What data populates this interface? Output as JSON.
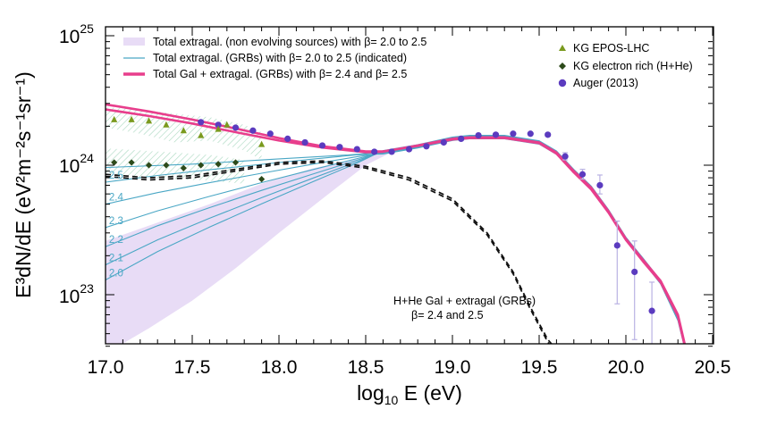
{
  "chart_data": {
    "type": "line",
    "xlabel_main": "log",
    "xlabel_sub": "10",
    "xlabel_rest": " E (eV)",
    "ylabel": "E³dN/dE (eV²m⁻²s⁻¹sr⁻¹)",
    "xlim": [
      17.0,
      20.5
    ],
    "ylim": [
      3.5e+22,
      1e+25
    ],
    "yscale": "log",
    "x_ticks": [
      "17.0",
      "17.5",
      "18.0",
      "18.5",
      "19.0",
      "19.5",
      "20.0",
      "20.5"
    ],
    "y_ticks": [
      {
        "base": "10",
        "exp": "23",
        "value": 1e+23
      },
      {
        "base": "10",
        "exp": "24",
        "value": 1e+24
      },
      {
        "base": "10",
        "exp": "25",
        "value": 1e+25
      }
    ],
    "colors": {
      "band": "#e8dcf6",
      "grb_lines": "#4aa7c5",
      "total": "#e83e8c",
      "epos": "#7a9a1e",
      "electron": "#2c4a1a",
      "auger": "#5b3bbf",
      "hatch": "#9ed3b8",
      "auger_err": "#b9b2e3"
    },
    "legend_left": [
      {
        "style": "band",
        "label": "Total extragal. (non evolving sources) with β= 2.0 to 2.5"
      },
      {
        "style": "thin",
        "label": "Total extragal. (GRBs) with β= 2.0 to 2.5 (indicated)"
      },
      {
        "style": "thick",
        "label": "Total Gal + extragal. (GRBs) with β= 2.4 and β= 2.5"
      }
    ],
    "legend_right": [
      {
        "marker": "triangle",
        "label": "KG EPOS-LHC"
      },
      {
        "marker": "diamond",
        "label": "KG electron rich (H+He)"
      },
      {
        "marker": "circle",
        "label": "Auger (2013)"
      }
    ],
    "annotation_line1": "H+He Gal + extragal (GRBs)",
    "annotation_line2": "β= 2.4 and 2.5",
    "beta_labels": [
      "2.5",
      "2.4",
      "2.3",
      "2.2",
      "2.1",
      "2.0"
    ],
    "beta_start_values": [
      7.4e+23,
      5e+23,
      3.3e+23,
      2.35e+23,
      1.7e+23,
      1.3e+23
    ],
    "grb_shape_x": [
      18.6,
      18.8,
      19.0,
      19.1,
      19.3,
      19.5,
      19.6,
      19.7,
      19.8,
      19.9,
      20.0,
      20.1,
      20.2,
      20.3,
      20.35
    ],
    "grb_shape_y": [
      1.26e+24,
      1.4e+24,
      1.6e+24,
      1.65e+24,
      1.65e+24,
      1.5e+24,
      1.25e+24,
      9e+23,
      6.7e+23,
      4.4e+23,
      2.7e+23,
      1.85e+23,
      1.25e+23,
      6.5e+22,
      3.5e+22
    ],
    "band_upper": {
      "x": [
        17.0,
        17.3,
        17.6,
        17.9,
        18.2,
        18.5,
        18.65
      ],
      "y": [
        2.6e+23,
        3.6e+23,
        5e+23,
        7.2e+23,
        9.5e+23,
        1.15e+24,
        1.26e+24
      ]
    },
    "band_lower": {
      "x": [
        17.0,
        17.25,
        17.5,
        17.75,
        18.0,
        18.25,
        18.5,
        18.65
      ],
      "y": [
        3.5e+22,
        5.5e+22,
        9e+22,
        1.6e+23,
        3e+23,
        5.5e+23,
        1e+24,
        1.26e+24
      ]
    },
    "total_gal_extragal": [
      {
        "name": "β=2.4",
        "x": [
          17.0,
          17.25,
          17.5,
          17.75,
          18.0,
          18.25,
          18.5,
          18.6,
          18.8,
          19.0,
          19.1,
          19.3,
          19.5,
          19.6,
          19.7,
          19.8,
          19.9,
          20.0,
          20.1,
          20.2,
          20.3,
          20.35
        ],
        "y": [
          2.7e+24,
          2.4e+24,
          2.1e+24,
          1.8e+24,
          1.55e+24,
          1.37e+24,
          1.26e+24,
          1.27e+24,
          1.42e+24,
          1.6e+24,
          1.64e+24,
          1.64e+24,
          1.5e+24,
          1.25e+24,
          9e+23,
          6.7e+23,
          4.4e+23,
          2.7e+23,
          1.85e+23,
          1.28e+23,
          7e+22,
          3.6e+22
        ]
      },
      {
        "name": "β=2.5",
        "x": [
          17.0,
          17.25,
          17.5,
          17.75,
          18.0,
          18.25,
          18.5,
          18.6,
          18.8,
          19.0,
          19.1,
          19.3,
          19.5,
          19.6,
          19.7,
          19.8,
          19.9,
          20.0,
          20.1,
          20.2,
          20.3,
          20.35
        ],
        "y": [
          2.95e+24,
          2.6e+24,
          2.25e+24,
          1.92e+24,
          1.62e+24,
          1.4e+24,
          1.28e+24,
          1.28e+24,
          1.41e+24,
          1.58e+24,
          1.62e+24,
          1.62e+24,
          1.48e+24,
          1.23e+24,
          8.8e+23,
          6.5e+23,
          4.3e+23,
          2.65e+23,
          1.8e+23,
          1.25e+23,
          6.8e+22,
          3.5e+22
        ]
      }
    ],
    "hhe_dashed": [
      {
        "name": "β=2.4",
        "x": [
          17.0,
          17.25,
          17.5,
          17.75,
          18.0,
          18.25,
          18.5,
          18.75,
          19.0,
          19.2,
          19.35,
          19.45,
          19.55,
          19.62
        ],
        "y": [
          8.5e+23,
          8e+23,
          8.3e+23,
          9.3e+23,
          1.05e+24,
          1.08e+24,
          9.8e+23,
          8e+23,
          5.5e+23,
          3e+23,
          1.5e+23,
          8e+22,
          4.5e+22,
          3.5e+22
        ]
      },
      {
        "name": "β=2.5",
        "x": [
          17.0,
          17.25,
          17.5,
          17.75,
          18.0,
          18.25,
          18.5,
          18.75,
          19.0,
          19.2,
          19.35,
          19.45,
          19.55,
          19.6
        ],
        "y": [
          8.2e+23,
          7.7e+23,
          8e+23,
          9e+23,
          1.02e+24,
          1.05e+24,
          9.5e+23,
          7.7e+23,
          5.3e+23,
          2.9e+23,
          1.45e+23,
          7.7e+22,
          4.3e+22,
          3.5e+22
        ]
      }
    ],
    "epos_band": {
      "x": [
        17.0,
        17.2,
        17.4,
        17.6,
        17.8,
        17.9
      ],
      "upper": [
        2.8e+24,
        2.7e+24,
        2.5e+24,
        2.35e+24,
        2.05e+24,
        1.8e+24
      ],
      "lower": [
        1.95e+24,
        1.75e+24,
        1.5e+24,
        1.55e+24,
        1.3e+24,
        1.1e+24
      ]
    },
    "electron_band": {
      "x": [
        17.0,
        17.2,
        17.4,
        17.6,
        17.8
      ],
      "upper": [
        1.35e+24,
        1.3e+24,
        1.25e+24,
        1.2e+24,
        1.1e+24
      ],
      "lower": [
        8.5e+23,
        8e+23,
        7.8e+23,
        7.6e+23,
        7.2e+23
      ]
    },
    "kg_epos": [
      {
        "x": 17.05,
        "y": 2.25e+24
      },
      {
        "x": 17.15,
        "y": 2.25e+24
      },
      {
        "x": 17.25,
        "y": 2.2e+24
      },
      {
        "x": 17.35,
        "y": 2.05e+24
      },
      {
        "x": 17.45,
        "y": 1.85e+24
      },
      {
        "x": 17.55,
        "y": 1.7e+24
      },
      {
        "x": 17.65,
        "y": 1.9e+24
      },
      {
        "x": 17.7,
        "y": 2.05e+24
      },
      {
        "x": 17.9,
        "y": 1.45e+24
      }
    ],
    "kg_electron": [
      {
        "x": 17.05,
        "y": 1.05e+24
      },
      {
        "x": 17.15,
        "y": 1.05e+24
      },
      {
        "x": 17.25,
        "y": 1e+24
      },
      {
        "x": 17.35,
        "y": 1e+24
      },
      {
        "x": 17.45,
        "y": 9.5e+23
      },
      {
        "x": 17.55,
        "y": 1e+24
      },
      {
        "x": 17.65,
        "y": 1.02e+24
      },
      {
        "x": 17.75,
        "y": 1.05e+24
      },
      {
        "x": 17.9,
        "y": 7.8e+23
      }
    ],
    "auger": [
      {
        "x": 17.55,
        "y": 2.15e+24,
        "lo": 2.15e+24,
        "hi": 2.15e+24
      },
      {
        "x": 17.65,
        "y": 2.05e+24,
        "lo": 2.05e+24,
        "hi": 2.05e+24
      },
      {
        "x": 17.75,
        "y": 1.95e+24,
        "lo": 1.95e+24,
        "hi": 1.95e+24
      },
      {
        "x": 17.85,
        "y": 1.85e+24,
        "lo": 1.85e+24,
        "hi": 1.85e+24
      },
      {
        "x": 17.95,
        "y": 1.75e+24,
        "lo": 1.75e+24,
        "hi": 1.75e+24
      },
      {
        "x": 18.05,
        "y": 1.6e+24,
        "lo": 1.6e+24,
        "hi": 1.6e+24
      },
      {
        "x": 18.15,
        "y": 1.5e+24,
        "lo": 1.5e+24,
        "hi": 1.5e+24
      },
      {
        "x": 18.25,
        "y": 1.42e+24,
        "lo": 1.42e+24,
        "hi": 1.42e+24
      },
      {
        "x": 18.35,
        "y": 1.38e+24,
        "lo": 1.38e+24,
        "hi": 1.38e+24
      },
      {
        "x": 18.45,
        "y": 1.33e+24,
        "lo": 1.33e+24,
        "hi": 1.33e+24
      },
      {
        "x": 18.55,
        "y": 1.27e+24,
        "lo": 1.27e+24,
        "hi": 1.27e+24
      },
      {
        "x": 18.65,
        "y": 1.27e+24,
        "lo": 1.27e+24,
        "hi": 1.27e+24
      },
      {
        "x": 18.75,
        "y": 1.33e+24,
        "lo": 1.33e+24,
        "hi": 1.33e+24
      },
      {
        "x": 18.85,
        "y": 1.4e+24,
        "lo": 1.4e+24,
        "hi": 1.4e+24
      },
      {
        "x": 18.95,
        "y": 1.5e+24,
        "lo": 1.5e+24,
        "hi": 1.5e+24
      },
      {
        "x": 19.05,
        "y": 1.6e+24,
        "lo": 1.6e+24,
        "hi": 1.6e+24
      },
      {
        "x": 19.15,
        "y": 1.7e+24,
        "lo": 1.7e+24,
        "hi": 1.7e+24
      },
      {
        "x": 19.25,
        "y": 1.72e+24,
        "lo": 1.72e+24,
        "hi": 1.72e+24
      },
      {
        "x": 19.35,
        "y": 1.75e+24,
        "lo": 1.75e+24,
        "hi": 1.75e+24
      },
      {
        "x": 19.45,
        "y": 1.75e+24,
        "lo": 1.75e+24,
        "hi": 1.75e+24
      },
      {
        "x": 19.55,
        "y": 1.72e+24,
        "lo": 1.72e+24,
        "hi": 1.72e+24
      },
      {
        "x": 19.65,
        "y": 1.17e+24,
        "lo": 1.1e+24,
        "hi": 1.25e+24
      },
      {
        "x": 19.75,
        "y": 8.5e+23,
        "lo": 7.8e+23,
        "hi": 9.3e+23
      },
      {
        "x": 19.85,
        "y": 7e+23,
        "lo": 6e+23,
        "hi": 8.4e+23
      },
      {
        "x": 19.95,
        "y": 2.4e+23,
        "lo": 8.5e+22,
        "hi": 3.7e+23
      },
      {
        "x": 20.05,
        "y": 1.5e+23,
        "lo": 4.5e+22,
        "hi": 2.6e+23
      },
      {
        "x": 20.15,
        "y": 7.5e+22,
        "lo": 3.5e+22,
        "hi": 1.25e+23
      }
    ]
  }
}
